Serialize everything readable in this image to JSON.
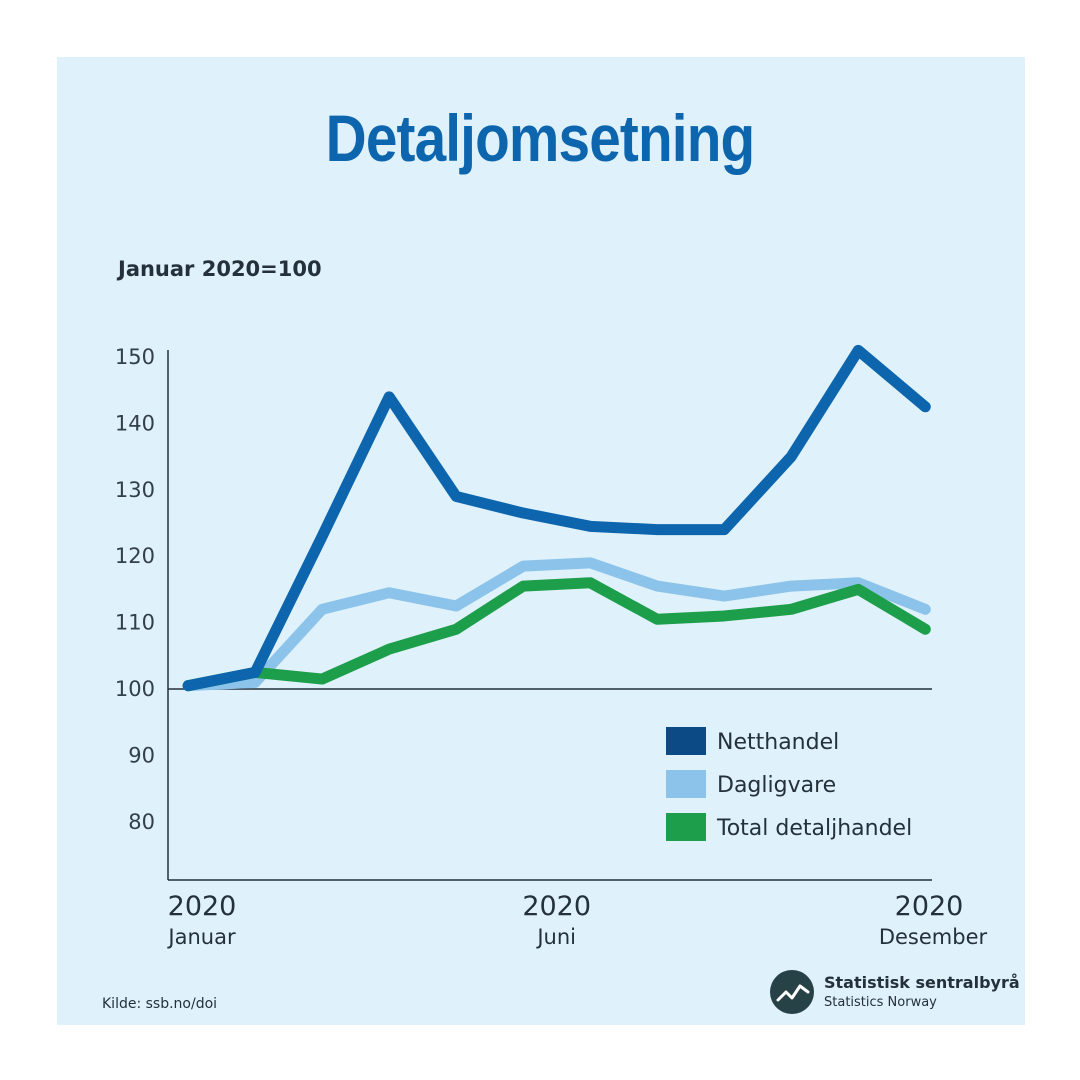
{
  "chart_data": {
    "type": "line",
    "title": "Detaljomsetning",
    "ylabel": "Januar 2020=100",
    "ylim": [
      70,
      152
    ],
    "yticks": [
      80,
      90,
      100,
      110,
      120,
      130,
      140,
      150
    ],
    "yticks_text": [
      "80",
      "90",
      "100",
      "110",
      "120",
      "130",
      "140",
      "150"
    ],
    "baseline": 100,
    "x": [
      1,
      2,
      3,
      4,
      5,
      6,
      7,
      8,
      9,
      10,
      11,
      12
    ],
    "xticks": [
      {
        "x": 1,
        "year": "2020",
        "month": "Januar"
      },
      {
        "x": 6.5,
        "year": "2020",
        "month": "Juni"
      },
      {
        "x": 12,
        "year": "2020",
        "month": "Desember"
      }
    ],
    "series": [
      {
        "name": "Dagligvare",
        "color": "#8cc3ea",
        "values": [
          100.5,
          101.0,
          112.0,
          114.5,
          112.5,
          118.5,
          119.0,
          115.5,
          114.0,
          115.5,
          116.0,
          112.0
        ]
      },
      {
        "name": "Total detaljhandel",
        "color": "#1d9e4a",
        "values": [
          100.5,
          102.5,
          101.5,
          106.0,
          109.0,
          115.5,
          116.0,
          110.5,
          111.0,
          112.0,
          115.0,
          109.0
        ]
      },
      {
        "name": "Netthandel",
        "color": "#0d65ae",
        "values": [
          100.5,
          102.5,
          123.0,
          144.0,
          129.0,
          126.5,
          124.5,
          124.0,
          124.0,
          135.0,
          151.0,
          142.5
        ]
      }
    ],
    "legend": [
      {
        "name": "Netthandel",
        "color": "#0c4a86"
      },
      {
        "name": "Dagligvare",
        "color": "#8cc3ea"
      },
      {
        "name": "Total detaljhandel",
        "color": "#1d9e4a"
      }
    ],
    "legend_position": "lower-right"
  },
  "source": "Kilde: ssb.no/doi",
  "logo": {
    "name": "Statistisk sentralbyrå",
    "subtitle": "Statistics Norway",
    "icon": "ssb-logo-icon"
  }
}
